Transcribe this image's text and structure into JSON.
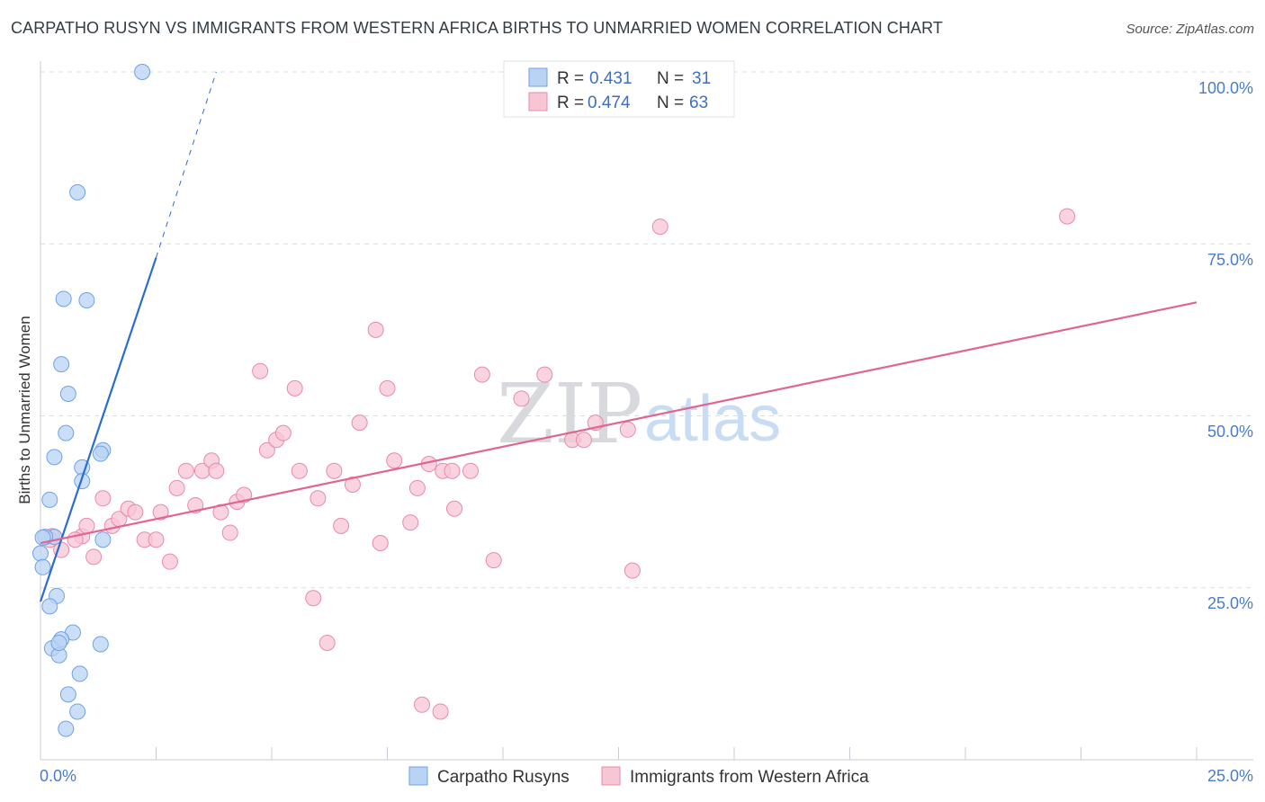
{
  "title": "CARPATHO RUSYN VS IMMIGRANTS FROM WESTERN AFRICA BIRTHS TO UNMARRIED WOMEN CORRELATION CHART",
  "source": "Source: ZipAtlas.com",
  "colors": {
    "blue": "#6ea2e6",
    "blue_fill": "#b9d3f5",
    "blue_line": "#2a6cd0",
    "pink": "#e98aa6",
    "pink_fill": "#f7c6d5",
    "pink_line": "#e06591",
    "axis_text": "#4a7cc9",
    "grid": "#d9dde3"
  },
  "watermark": {
    "part1": "ZIP",
    "part2": "atlas"
  },
  "legend": {
    "rows": [
      {
        "r_label": "R =",
        "r_value": "0.431",
        "n_label": "N =",
        "n_value": "31"
      },
      {
        "r_label": "R =",
        "r_value": "0.474",
        "n_label": "N =",
        "n_value": "63"
      }
    ]
  },
  "chart_data": {
    "type": "scatter",
    "title": "CARPATHO RUSYN VS IMMIGRANTS FROM WESTERN AFRICA BIRTHS TO UNMARRIED WOMEN CORRELATION CHART",
    "xlabel": "",
    "ylabel": "Births to Unmarried Women",
    "xlim": [
      0,
      25
    ],
    "ylim": [
      0,
      100
    ],
    "x_tick_labels": [
      "0.0%",
      "25.0%"
    ],
    "y_tick_labels": [
      "25.0%",
      "50.0%",
      "75.0%",
      "100.0%"
    ],
    "y_ticks": [
      25,
      50,
      75,
      100
    ],
    "grid": true,
    "series": [
      {
        "name": "Carpatho Rusyns",
        "r": 0.431,
        "n": 31,
        "points": [
          [
            2.2,
            100.0
          ],
          [
            0.8,
            82.5
          ],
          [
            0.5,
            67.0
          ],
          [
            1.0,
            66.8
          ],
          [
            0.45,
            57.5
          ],
          [
            0.6,
            53.2
          ],
          [
            0.55,
            47.5
          ],
          [
            0.3,
            44.0
          ],
          [
            1.35,
            45.0
          ],
          [
            1.3,
            44.5
          ],
          [
            0.9,
            42.5
          ],
          [
            0.9,
            40.5
          ],
          [
            0.2,
            37.8
          ],
          [
            0.3,
            32.4
          ],
          [
            0.1,
            32.4
          ],
          [
            0.05,
            32.3
          ],
          [
            0.0,
            30.0
          ],
          [
            0.05,
            28.0
          ],
          [
            1.35,
            32.0
          ],
          [
            0.35,
            23.8
          ],
          [
            0.2,
            22.3
          ],
          [
            0.7,
            18.5
          ],
          [
            0.45,
            17.5
          ],
          [
            1.3,
            16.8
          ],
          [
            0.25,
            16.2
          ],
          [
            0.4,
            15.2
          ],
          [
            0.4,
            17.0
          ],
          [
            0.85,
            12.5
          ],
          [
            0.6,
            9.5
          ],
          [
            0.8,
            7.0
          ],
          [
            0.55,
            4.5
          ]
        ],
        "trend": {
          "x0": 0.0,
          "y0": 23.0,
          "x1": 2.5,
          "y1": 73.0,
          "dash_x1": 3.8,
          "dash_y1": 100.0
        }
      },
      {
        "name": "Immigrants from Western Africa",
        "r": 0.474,
        "n": 63,
        "points": [
          [
            0.25,
            32.5
          ],
          [
            0.45,
            30.5
          ],
          [
            0.2,
            32.0
          ],
          [
            0.9,
            32.5
          ],
          [
            0.75,
            32.0
          ],
          [
            1.0,
            34.0
          ],
          [
            1.15,
            29.5
          ],
          [
            1.35,
            38.0
          ],
          [
            1.55,
            34.0
          ],
          [
            1.7,
            35.0
          ],
          [
            1.9,
            36.5
          ],
          [
            2.05,
            36.0
          ],
          [
            2.25,
            32.0
          ],
          [
            2.5,
            32.0
          ],
          [
            2.6,
            36.0
          ],
          [
            2.8,
            28.8
          ],
          [
            2.95,
            39.5
          ],
          [
            3.15,
            42.0
          ],
          [
            3.35,
            37.0
          ],
          [
            3.5,
            42.0
          ],
          [
            3.7,
            43.5
          ],
          [
            3.8,
            42.0
          ],
          [
            3.9,
            36.0
          ],
          [
            4.1,
            33.0
          ],
          [
            4.25,
            37.5
          ],
          [
            4.4,
            38.5
          ],
          [
            4.75,
            56.5
          ],
          [
            4.9,
            45.0
          ],
          [
            5.1,
            46.5
          ],
          [
            5.25,
            47.5
          ],
          [
            5.5,
            54.0
          ],
          [
            5.6,
            42.0
          ],
          [
            5.9,
            23.5
          ],
          [
            6.0,
            38.0
          ],
          [
            6.2,
            17.0
          ],
          [
            6.35,
            42.0
          ],
          [
            6.5,
            34.0
          ],
          [
            6.75,
            40.0
          ],
          [
            6.9,
            49.0
          ],
          [
            7.25,
            62.5
          ],
          [
            7.35,
            31.5
          ],
          [
            7.5,
            54.0
          ],
          [
            7.65,
            43.5
          ],
          [
            8.0,
            34.5
          ],
          [
            8.15,
            39.5
          ],
          [
            8.25,
            8.0
          ],
          [
            8.4,
            43.0
          ],
          [
            8.65,
            7.0
          ],
          [
            8.7,
            42.0
          ],
          [
            8.9,
            42.0
          ],
          [
            8.95,
            36.5
          ],
          [
            9.3,
            42.0
          ],
          [
            9.55,
            56.0
          ],
          [
            9.8,
            29.0
          ],
          [
            10.4,
            52.5
          ],
          [
            10.9,
            56.0
          ],
          [
            11.5,
            46.5
          ],
          [
            11.75,
            46.5
          ],
          [
            12.0,
            49.0
          ],
          [
            12.7,
            48.0
          ],
          [
            12.8,
            27.5
          ],
          [
            13.4,
            77.5
          ],
          [
            22.2,
            79.0
          ]
        ],
        "trend": {
          "x0": 0.0,
          "y0": 31.5,
          "x1": 25.0,
          "y1": 66.5
        }
      }
    ]
  }
}
